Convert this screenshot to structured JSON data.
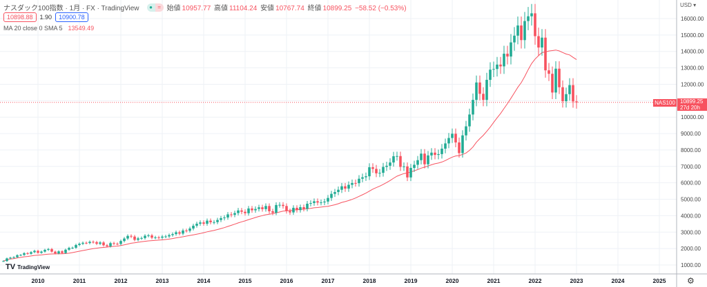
{
  "header": {
    "title": "ナスダック100指数 · 1月 · FX · TradingView",
    "open_label": "始値",
    "open": "10957.77",
    "high_label": "高値",
    "high": "11104.24",
    "low_label": "安値",
    "low": "10767.74",
    "close_label": "終値",
    "close": "10899.25",
    "change": "−58.52 (−0.53%)",
    "bid": "10898.88",
    "spread": "1.90",
    "ask": "10900.78",
    "ma_label": "MA 20 close 0 SMA 5",
    "ma_value": "13549.49"
  },
  "axis": {
    "currency": "USD",
    "symbol_tag": "NAS100",
    "price_tag": "10899.25",
    "countdown": "27d 20h"
  },
  "logo": "TradingView",
  "colors": {
    "up": "#22ab94",
    "down": "#f7525f",
    "ma": "#f7525f",
    "grid": "#eef1f6"
  },
  "chart_data": {
    "type": "candlestick",
    "title": "ナスダック100指数 · 1月",
    "start": "2009-03",
    "ylim": [
      0,
      16700
    ],
    "yticks": [
      1000,
      2000,
      3000,
      4000,
      5000,
      6000,
      7000,
      8000,
      9000,
      10000,
      11000,
      12000,
      13000,
      14000,
      15000,
      16000
    ],
    "ytick_labels": [
      "1000.00",
      "2000.00",
      "3000.00",
      "4000.00",
      "5000.00",
      "6000.00",
      "7000.00",
      "8000.00",
      "9000.00",
      "10000.00",
      "11000.00",
      "12000.00",
      "13000.00",
      "14000.00",
      "15000.00",
      "16000.00"
    ],
    "xticks": [
      "2010",
      "2011",
      "2012",
      "2013",
      "2014",
      "2015",
      "2016",
      "2017",
      "2018",
      "2019",
      "2020",
      "2021",
      "2022",
      "2023",
      "2024",
      "2025"
    ],
    "first_open": 1230,
    "closes": [
      1237,
      1400,
      1446,
      1477,
      1595,
      1611,
      1718,
      1681,
      1779,
      1860,
      1740,
      1813,
      1920,
      1968,
      1811,
      1704,
      1830,
      1730,
      1930,
      2040,
      2050,
      2217,
      2290,
      2350,
      2338,
      2410,
      2390,
      2290,
      2370,
      2200,
      2140,
      2330,
      2290,
      2280,
      2460,
      2610,
      2770,
      2730,
      2530,
      2620,
      2640,
      2780,
      2800,
      2660,
      2680,
      2660,
      2730,
      2740,
      2820,
      2880,
      2990,
      2910,
      3100,
      3080,
      3220,
      3390,
      3510,
      3590,
      3510,
      3700,
      3600,
      3610,
      3740,
      3850,
      3890,
      4080,
      4050,
      4160,
      4320,
      4240,
      4150,
      4440,
      4330,
      4410,
      4510,
      4400,
      4590,
      4270,
      4180,
      4650,
      4660,
      4590,
      4280,
      4200,
      4480,
      4340,
      4520,
      4420,
      4730,
      4770,
      4880,
      4800,
      4810,
      4860,
      5080,
      5330,
      5440,
      5580,
      5790,
      5650,
      5880,
      5990,
      5980,
      6250,
      6340,
      6400,
      6950,
      6850,
      6580,
      6610,
      6970,
      7040,
      7240,
      7620,
      7630,
      6970,
      7000,
      6330,
      6910,
      7100,
      7380,
      7780,
      7130,
      7670,
      7840,
      7700,
      7750,
      8080,
      8400,
      8730,
      8990,
      8460,
      7810,
      8890,
      9440,
      10160,
      11050,
      12110,
      11420,
      11050,
      12270,
      12890,
      12930,
      13200,
      13090,
      13860,
      13690,
      14550,
      14960,
      15580,
      14690,
      15850,
      16140,
      16320,
      14930,
      14240,
      14840,
      12850,
      12640,
      11500,
      12950,
      11820,
      10970,
      11400,
      11950,
      10957,
      10899.25
    ],
    "ma_period": 20,
    "last_price": 10899.25
  }
}
